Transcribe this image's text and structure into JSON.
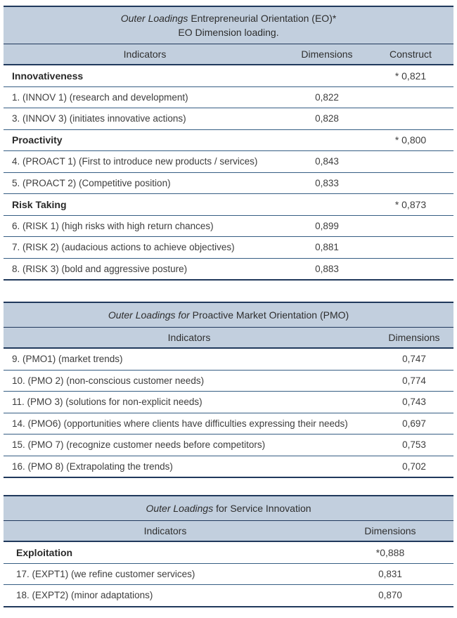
{
  "page": {
    "background": "#ffffff"
  },
  "colors": {
    "header_bg": "#c2cfde",
    "border_dark": "#20395c",
    "border_light": "#355d83",
    "text": "#3d3d3d"
  },
  "tables": [
    {
      "id": "eo",
      "title_italic": "Outer Loadings",
      "title_rest": "Entrepreneurial Orientation (EO)*",
      "title_line2": "EO Dimension loading.",
      "columns": [
        "Indicators",
        "Dimensions",
        "Construct"
      ],
      "rows": [
        {
          "label": "Innovativeness",
          "type": "category",
          "construct": "* 0,821"
        },
        {
          "label": "1. (INNOV 1) (research and development)",
          "dimension": "0,822"
        },
        {
          "label": "3. (INNOV 3) (initiates innovative actions)",
          "dimension": "0,828"
        },
        {
          "label": "Proactivity",
          "type": "category",
          "construct": "* 0,800"
        },
        {
          "label": "4. (PROACT 1) (First to introduce new products / services)",
          "dimension": "0,843"
        },
        {
          "label": "5. (PROACT 2) (Competitive position)",
          "dimension": "0,833"
        },
        {
          "label": "Risk Taking",
          "type": "category",
          "construct": "* 0,873"
        },
        {
          "label": "6. (RISK 1) (high risks with high return chances)",
          "dimension": "0,899"
        },
        {
          "label": "7. (RISK 2) (audacious actions to achieve objectives)",
          "dimension": "0,881"
        },
        {
          "label": "8. (RISK 3) (bold and aggressive posture)",
          "dimension": "0,883"
        }
      ]
    },
    {
      "id": "pmo",
      "title_italic": "Outer Loadings for",
      "title_rest": "Proactive Market Orientation (PMO)",
      "columns": [
        "Indicators",
        "Dimensions"
      ],
      "rows": [
        {
          "label": "9. (PMO1) (market trends)",
          "dimension": "0,747"
        },
        {
          "label": "10. (PMO 2) (non-conscious customer needs)",
          "dimension": "0,774"
        },
        {
          "label": "11. (PMO 3) (solutions for non-explicit needs)",
          "dimension": "0,743"
        },
        {
          "label": "14. (PMO6) (opportunities where clients have difficulties expressing their needs)",
          "dimension": "0,697"
        },
        {
          "label": "15. (PMO 7) (recognize customer needs before competitors)",
          "dimension": "0,753"
        },
        {
          "label": "16. (PMO 8) (Extrapolating the trends)",
          "dimension": "0,702"
        }
      ]
    },
    {
      "id": "si",
      "title_italic": "Outer Loadings",
      "title_rest": "for Service Innovation",
      "columns": [
        "Indicators",
        "Dimensions"
      ],
      "rows": [
        {
          "label": "Exploitation",
          "type": "category",
          "dimension": "*0,888"
        },
        {
          "label": "17. (EXPT1) (we refine customer services)",
          "dimension": "0,831"
        },
        {
          "label": "18. (EXPT2) (minor adaptations)",
          "dimension": "0,870"
        }
      ]
    }
  ]
}
